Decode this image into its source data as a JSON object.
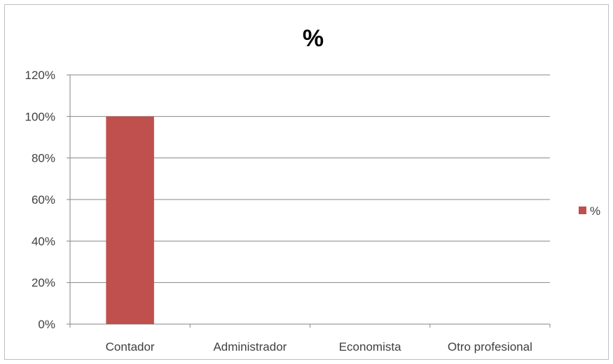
{
  "chart_data": {
    "type": "bar",
    "title": "%",
    "categories": [
      "Contador",
      "Administrador",
      "Economista",
      "Otro profesional"
    ],
    "series": [
      {
        "name": "%",
        "values": [
          100,
          0,
          0,
          0
        ],
        "color": "#c0504d"
      }
    ],
    "ylim": [
      0,
      120
    ],
    "yticks": [
      "0%",
      "20%",
      "40%",
      "60%",
      "80%",
      "100%",
      "120%"
    ],
    "grid": true,
    "legend": "right"
  }
}
